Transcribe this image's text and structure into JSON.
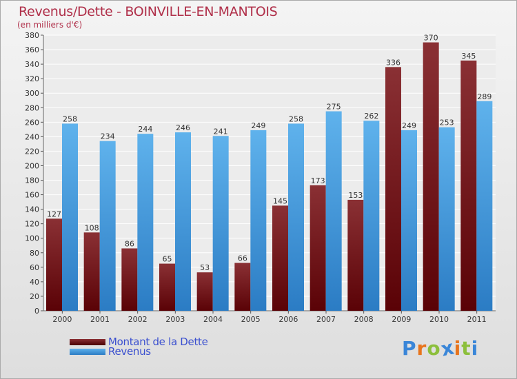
{
  "header": {
    "title": "Revenus/Dette - BOINVILLE-EN-MANTOIS",
    "subtitle": "(en milliers d'€)"
  },
  "legend": [
    {
      "label": "Montant de la Dette",
      "color": "#6b0b10"
    },
    {
      "label": "Revenus",
      "color": "#4a9fe0"
    }
  ],
  "logo": {
    "text": "Proxiti",
    "letters": [
      {
        "char": "P",
        "color": "#3a86d8"
      },
      {
        "char": "r",
        "color": "#e8741c"
      },
      {
        "char": "o",
        "color": "#8cbf3c"
      },
      {
        "char": "x",
        "color": "#3a86d8"
      },
      {
        "char": "i",
        "color": "#e8741c"
      },
      {
        "char": "t",
        "color": "#8cbf3c"
      },
      {
        "char": "i",
        "color": "#3a86d8"
      }
    ]
  },
  "chart_data": {
    "type": "bar",
    "title": "Revenus/Dette - BOINVILLE-EN-MANTOIS",
    "subtitle": "(en milliers d'€)",
    "xlabel": "",
    "ylabel": "",
    "ylim": [
      0,
      380
    ],
    "ytick_step": 20,
    "grid": true,
    "legend_position": "bottom-left",
    "categories": [
      "2000",
      "2001",
      "2002",
      "2003",
      "2004",
      "2005",
      "2006",
      "2007",
      "2008",
      "2009",
      "2010",
      "2011"
    ],
    "series": [
      {
        "name": "Montant de la Dette",
        "color": "#6b0b10",
        "values": [
          127,
          108,
          86,
          65,
          53,
          66,
          145,
          173,
          153,
          336,
          370,
          345
        ]
      },
      {
        "name": "Revenus",
        "color": "#4a9fe0",
        "values": [
          258,
          234,
          244,
          246,
          241,
          249,
          258,
          275,
          262,
          249,
          253,
          289
        ]
      }
    ]
  }
}
